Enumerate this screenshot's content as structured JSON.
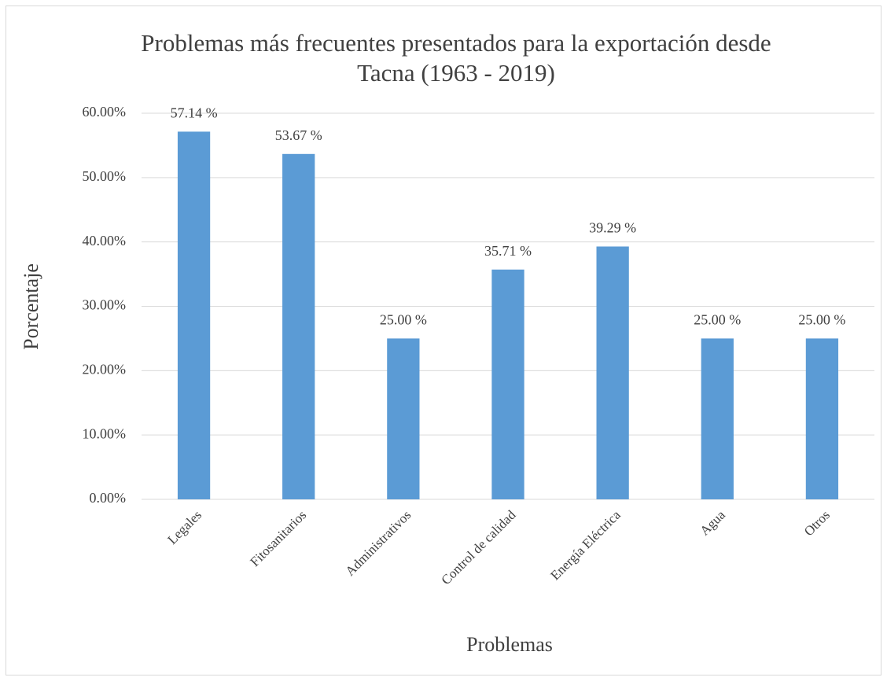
{
  "chart_data": {
    "type": "bar",
    "title": "Problemas más frecuentes presentados para la exportación desde Tacna (1963 - 2019)",
    "x_label": "Problemas",
    "y_label": "Porcentaje",
    "categories": [
      "Legales",
      "Fitosanitarios",
      "Administrativos",
      "Control de calidad",
      "Energía Eléctrica",
      "Agua",
      "Otros"
    ],
    "values": [
      57.14,
      53.67,
      25.0,
      35.71,
      39.29,
      25.0,
      25.0
    ],
    "value_labels": [
      "57.14 %",
      "53.67 %",
      "25.00 %",
      "35.71 %",
      "39.29 %",
      "25.00 %",
      "25.00 %"
    ],
    "color": "#5b9bd5",
    "ylim": [
      0,
      60
    ],
    "yticks": [
      {
        "value": 0,
        "label": "0.00%"
      },
      {
        "value": 10,
        "label": "10.00%"
      },
      {
        "value": 20,
        "label": "20.00%"
      },
      {
        "value": 30,
        "label": "30.00%"
      },
      {
        "value": 40,
        "label": "40.00%"
      },
      {
        "value": 50,
        "label": "50.00%"
      },
      {
        "value": 60,
        "label": "60.00%"
      }
    ],
    "grid": true
  }
}
